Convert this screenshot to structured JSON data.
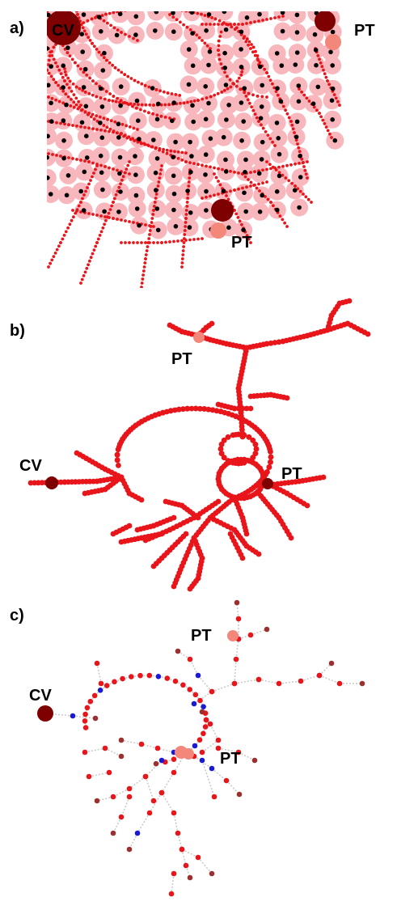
{
  "panels": [
    {
      "id": "a",
      "label": "a)",
      "annotations": [
        "CV",
        "PT",
        "PT"
      ]
    },
    {
      "id": "b",
      "label": "b)",
      "annotations": [
        "PT",
        "CV",
        "PT"
      ]
    },
    {
      "id": "c",
      "label": "c)",
      "annotations": [
        "PT",
        "CV",
        "PT"
      ]
    }
  ],
  "colors": {
    "sinusoid_red": "#e8151a",
    "hepatocyte_pink": "#f7b7bd",
    "nucleus_black": "#000000",
    "cv_dark_red": "#7f0000",
    "pt_salmon": "#f2877a",
    "node_blue": "#1a1ad6",
    "node_brown": "#9c2f2f",
    "edge_gray": "#c8c8c8"
  }
}
